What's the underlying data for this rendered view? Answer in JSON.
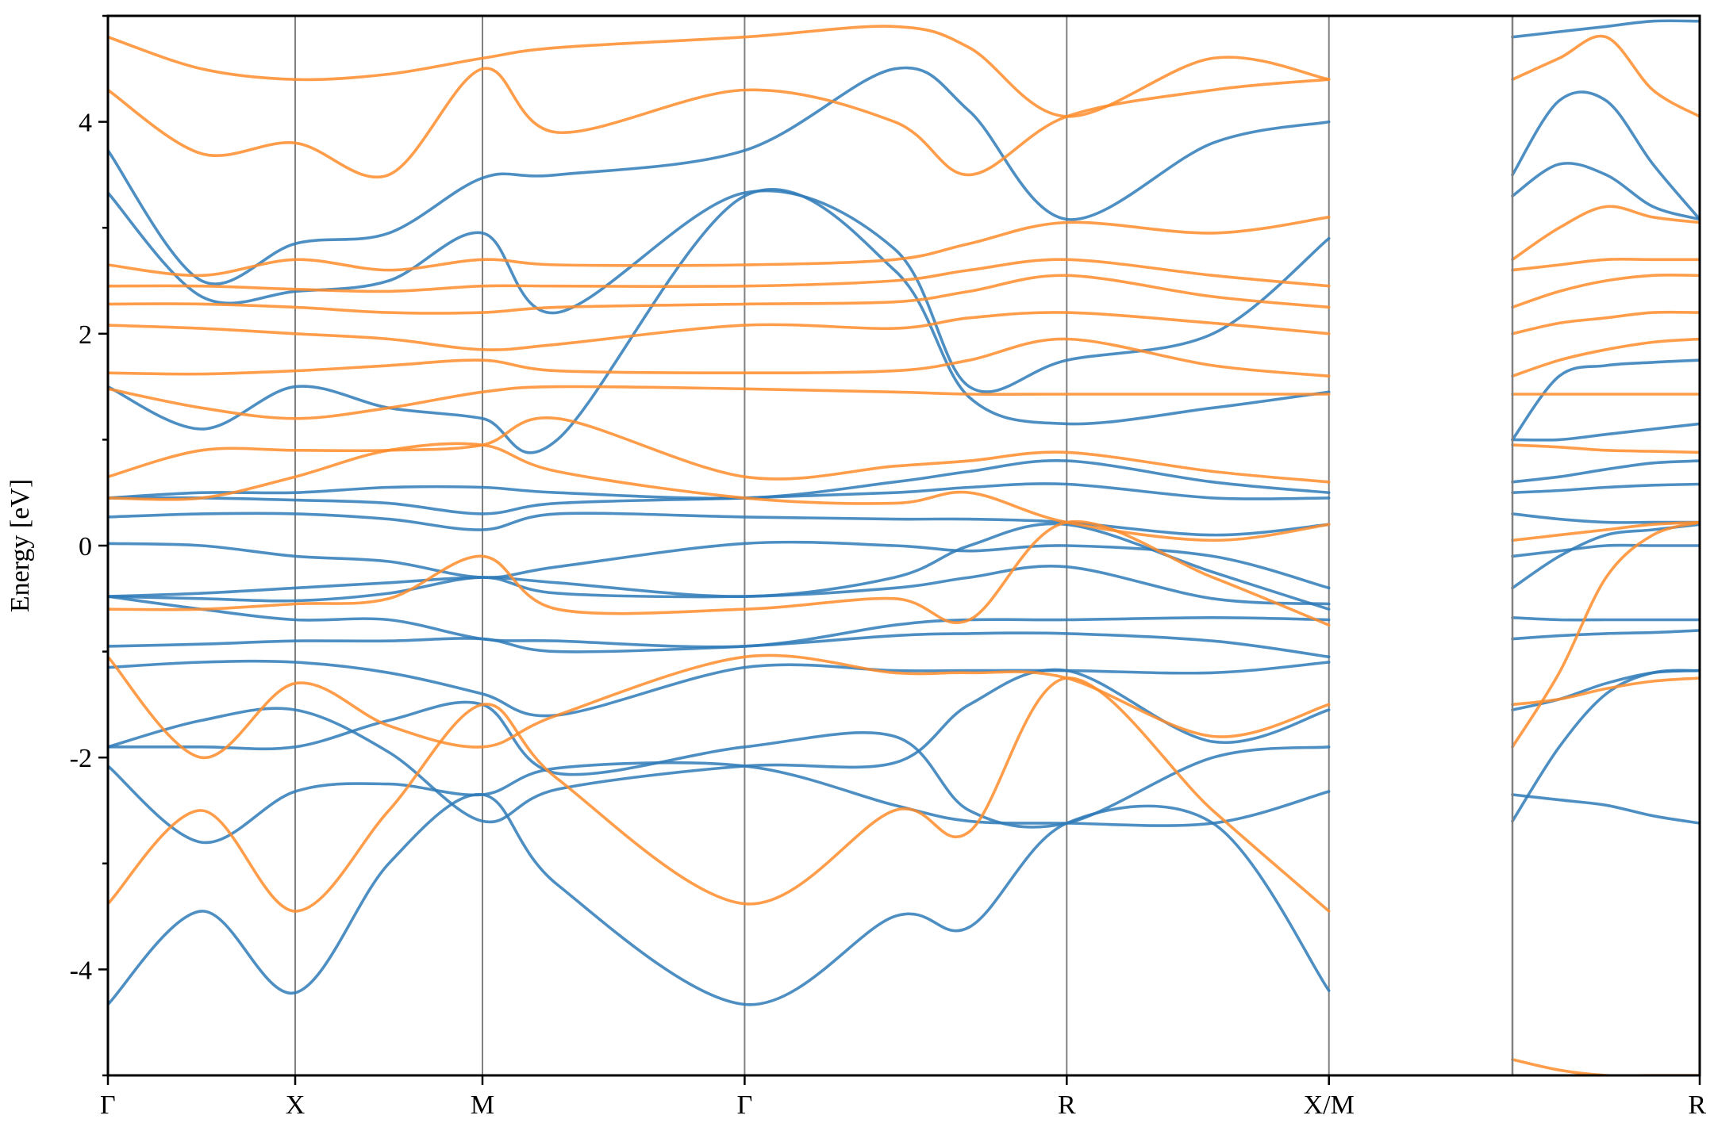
{
  "chart_data": {
    "type": "line",
    "ylabel": "Energy [eV]",
    "ylim": [
      -5,
      5
    ],
    "y_ticks": [
      -4,
      -2,
      0,
      2,
      4
    ],
    "y_tick_labels": [
      "-4",
      "-2",
      "0",
      "2",
      "4"
    ],
    "grid": false,
    "legend": "none",
    "panels": [
      {
        "x_range": [
          0,
          7.5
        ],
        "kpoints": [
          {
            "label": "Γ",
            "x": 0
          },
          {
            "label": "X",
            "x": 1
          },
          {
            "label": "M",
            "x": 2
          },
          {
            "label": "Γ",
            "x": 3.4
          },
          {
            "label": "R",
            "x": 5.12
          },
          {
            "label": "X/M",
            "x": 6.52
          }
        ]
      },
      {
        "x_range": [
          7.5,
          8.5
        ],
        "kpoints": [
          {
            "label": "R",
            "x": 8.5
          }
        ]
      }
    ],
    "colors": {
      "spin_up": "#2f7bb8",
      "spin_down": "#ff8c2a",
      "kpath_line": "#808080"
    },
    "series": [
      {
        "color": "#2f7bb8",
        "x": [
          0,
          0.5,
          1,
          1.5,
          2,
          2.4,
          3.4,
          4.2,
          4.6,
          5.12,
          5.9,
          6.52
        ],
        "bands": [
          [
            -4.33,
            -3.45,
            -4.22,
            -3.0,
            -2.35,
            -3.2,
            -4.33,
            -3.5,
            -3.6,
            -2.62,
            -2.62,
            -4.2
          ],
          [
            -2.08,
            -2.8,
            -2.32,
            -2.25,
            -2.35,
            -2.1,
            -2.08,
            -2.45,
            -2.6,
            -2.62,
            -2.62,
            -2.32
          ],
          [
            -1.9,
            -1.9,
            -1.9,
            -1.65,
            -1.5,
            -2.15,
            -1.9,
            -1.8,
            -2.5,
            -2.62,
            -2.0,
            -1.9
          ],
          [
            -1.9,
            -1.65,
            -1.55,
            -1.95,
            -2.6,
            -2.3,
            -2.08,
            -2.05,
            -1.5,
            -1.18,
            -1.85,
            -1.55
          ],
          [
            -1.15,
            -1.1,
            -1.1,
            -1.2,
            -1.4,
            -1.6,
            -1.15,
            -1.18,
            -1.18,
            -1.18,
            -1.2,
            -1.1
          ],
          [
            -0.95,
            -0.93,
            -0.9,
            -0.9,
            -0.88,
            -1.0,
            -0.95,
            -0.85,
            -0.83,
            -0.83,
            -0.9,
            -1.05
          ],
          [
            -0.48,
            -0.6,
            -0.7,
            -0.7,
            -0.88,
            -0.9,
            -0.95,
            -0.75,
            -0.7,
            -0.7,
            -0.68,
            -0.7
          ],
          [
            -0.48,
            -0.5,
            -0.52,
            -0.45,
            -0.3,
            -0.45,
            -0.48,
            -0.4,
            -0.3,
            -0.2,
            -0.5,
            -0.55
          ],
          [
            -0.48,
            -0.45,
            -0.4,
            -0.35,
            -0.3,
            -0.35,
            -0.48,
            -0.3,
            0.0,
            0.2,
            -0.25,
            -0.6
          ],
          [
            0.02,
            0.0,
            -0.1,
            -0.15,
            -0.3,
            -0.2,
            0.02,
            0.0,
            -0.05,
            0.0,
            -0.1,
            -0.4
          ],
          [
            0.27,
            0.3,
            0.3,
            0.25,
            0.15,
            0.3,
            0.27,
            0.25,
            0.25,
            0.22,
            0.1,
            0.2
          ],
          [
            0.45,
            0.45,
            0.43,
            0.4,
            0.3,
            0.4,
            0.45,
            0.5,
            0.55,
            0.58,
            0.45,
            0.45
          ],
          [
            0.45,
            0.5,
            0.5,
            0.55,
            0.55,
            0.5,
            0.45,
            0.6,
            0.7,
            0.8,
            0.6,
            0.5
          ],
          [
            1.5,
            1.1,
            1.5,
            1.3,
            1.2,
            1.0,
            3.3,
            2.6,
            1.4,
            1.15,
            1.3,
            1.45
          ],
          [
            3.33,
            2.35,
            2.4,
            2.5,
            2.95,
            2.2,
            3.33,
            2.8,
            1.5,
            1.75,
            2.0,
            2.9
          ],
          [
            3.73,
            2.5,
            2.85,
            2.95,
            3.47,
            3.5,
            3.73,
            4.5,
            4.1,
            3.08,
            3.8,
            4.0
          ]
        ]
      },
      {
        "color": "#ff8c2a",
        "x": [
          0,
          0.5,
          1,
          1.5,
          2,
          2.4,
          3.4,
          4.2,
          4.6,
          5.12,
          5.9,
          6.52
        ],
        "bands": [
          [
            -3.38,
            -2.5,
            -3.45,
            -2.5,
            -1.5,
            -2.2,
            -3.38,
            -2.5,
            -2.7,
            -1.25,
            -2.5,
            -3.45
          ],
          [
            -1.05,
            -2.0,
            -1.3,
            -1.7,
            -1.9,
            -1.6,
            -1.05,
            -1.2,
            -1.2,
            -1.25,
            -1.8,
            -1.5
          ],
          [
            -0.6,
            -0.6,
            -0.55,
            -0.5,
            -0.1,
            -0.6,
            -0.6,
            -0.5,
            -0.7,
            0.22,
            -0.3,
            -0.75
          ],
          [
            0.45,
            0.45,
            0.65,
            0.9,
            0.95,
            0.7,
            0.45,
            0.4,
            0.5,
            0.22,
            0.05,
            0.2
          ],
          [
            0.65,
            0.9,
            0.9,
            0.9,
            0.95,
            1.2,
            0.65,
            0.75,
            0.8,
            0.88,
            0.7,
            0.6
          ],
          [
            1.48,
            1.3,
            1.2,
            1.3,
            1.45,
            1.5,
            1.48,
            1.45,
            1.43,
            1.43,
            1.43,
            1.43
          ],
          [
            1.63,
            1.62,
            1.65,
            1.7,
            1.75,
            1.65,
            1.63,
            1.65,
            1.75,
            1.95,
            1.7,
            1.6
          ],
          [
            2.08,
            2.05,
            2.0,
            1.95,
            1.85,
            1.9,
            2.08,
            2.05,
            2.15,
            2.2,
            2.1,
            2.0
          ],
          [
            2.28,
            2.28,
            2.25,
            2.2,
            2.2,
            2.25,
            2.28,
            2.3,
            2.4,
            2.55,
            2.35,
            2.25
          ],
          [
            2.45,
            2.45,
            2.42,
            2.4,
            2.45,
            2.45,
            2.45,
            2.5,
            2.6,
            2.7,
            2.55,
            2.45
          ],
          [
            2.65,
            2.55,
            2.7,
            2.6,
            2.7,
            2.65,
            2.65,
            2.7,
            2.85,
            3.05,
            2.95,
            3.1
          ],
          [
            4.3,
            3.7,
            3.8,
            3.5,
            4.5,
            3.9,
            4.3,
            4.0,
            3.5,
            4.05,
            4.3,
            4.4
          ],
          [
            4.8,
            4.5,
            4.4,
            4.45,
            4.6,
            4.7,
            4.8,
            4.9,
            4.7,
            4.05,
            4.6,
            4.4
          ]
        ]
      },
      {
        "color": "#2f7bb8",
        "x": [
          7.5,
          7.75,
          8.0,
          8.25,
          8.5
        ],
        "bands": [
          [
            -2.35,
            -2.4,
            -2.45,
            -2.55,
            -2.62
          ],
          [
            -2.6,
            -1.9,
            -1.4,
            -1.2,
            -1.18
          ],
          [
            -1.55,
            -1.45,
            -1.3,
            -1.2,
            -1.18
          ],
          [
            -0.88,
            -0.85,
            -0.83,
            -0.82,
            -0.8
          ],
          [
            -0.68,
            -0.7,
            -0.7,
            -0.7,
            -0.7
          ],
          [
            -0.4,
            -0.1,
            0.1,
            0.15,
            0.2
          ],
          [
            -0.1,
            -0.05,
            0.0,
            0.0,
            0.0
          ],
          [
            0.3,
            0.25,
            0.22,
            0.22,
            0.22
          ],
          [
            0.5,
            0.52,
            0.55,
            0.57,
            0.58
          ],
          [
            0.6,
            0.65,
            0.72,
            0.78,
            0.8
          ],
          [
            1.0,
            1.0,
            1.05,
            1.1,
            1.15
          ],
          [
            1.0,
            1.6,
            1.7,
            1.73,
            1.75
          ],
          [
            3.3,
            3.6,
            3.5,
            3.2,
            3.08
          ],
          [
            3.5,
            4.2,
            4.2,
            3.6,
            3.08
          ],
          [
            4.8,
            4.85,
            4.9,
            4.95,
            4.95
          ]
        ]
      },
      {
        "color": "#ff8c2a",
        "x": [
          7.5,
          7.75,
          8.0,
          8.25,
          8.5
        ],
        "bands": [
          [
            -1.5,
            -1.45,
            -1.35,
            -1.28,
            -1.25
          ],
          [
            -1.9,
            -1.2,
            -0.3,
            0.1,
            0.22
          ],
          [
            0.05,
            0.1,
            0.15,
            0.2,
            0.22
          ],
          [
            0.95,
            0.93,
            0.9,
            0.89,
            0.88
          ],
          [
            1.43,
            1.43,
            1.43,
            1.43,
            1.43
          ],
          [
            1.6,
            1.75,
            1.85,
            1.92,
            1.95
          ],
          [
            2.0,
            2.1,
            2.15,
            2.2,
            2.2
          ],
          [
            2.25,
            2.4,
            2.5,
            2.55,
            2.55
          ],
          [
            2.6,
            2.65,
            2.7,
            2.7,
            2.7
          ],
          [
            2.7,
            3.0,
            3.2,
            3.1,
            3.05
          ],
          [
            4.4,
            4.6,
            4.8,
            4.3,
            4.05
          ],
          [
            -4.85,
            -4.95,
            -5.0,
            -5.0,
            -5.0
          ]
        ]
      }
    ]
  }
}
